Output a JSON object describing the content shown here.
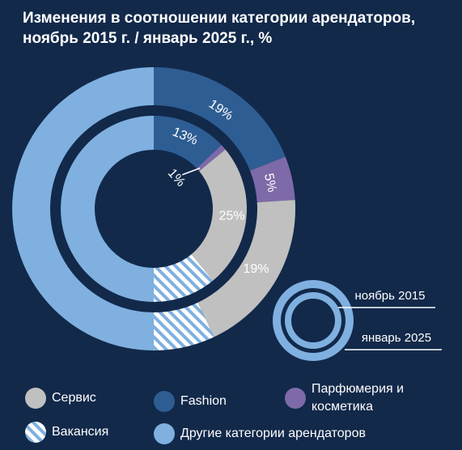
{
  "title": {
    "line1": "Изменения в соотношении категории арендаторов,",
    "line2": "ноябрь 2015 г. / январь 2025 г., %"
  },
  "colors": {
    "background": "#12294a",
    "Сервис": "#c0c0c0",
    "Fashion": "#2e5d93",
    "Парфюмерия и косметика": "#7e6aa8",
    "Вакансия": "#7fb0e0",
    "Другие категории арендаторов": "#7fb0e0"
  },
  "chart_data": {
    "type": "donut",
    "title": "Изменения в соотношении категории арендаторов, ноябрь 2015 г. / январь 2025 г., %",
    "unit": "%",
    "categories": [
      "Fashion",
      "Парфюмерия и косметика",
      "Сервис",
      "Вакансия",
      "Другие категории арендаторов"
    ],
    "series": [
      {
        "name": "январь 2025",
        "ring": "outer",
        "values": [
          19,
          5,
          19,
          7,
          50
        ],
        "labels": [
          "19%",
          "5%",
          "19%",
          "",
          ""
        ]
      },
      {
        "name": "ноябрь 2015",
        "ring": "inner",
        "values": [
          13,
          1,
          25,
          11,
          50
        ],
        "labels": [
          "13%",
          "1%",
          "25%",
          "",
          ""
        ]
      }
    ],
    "legend": {
      "position": "bottom",
      "items": [
        {
          "label": "Сервис",
          "key": "Сервис",
          "pattern": "solid"
        },
        {
          "label": "Fashion",
          "key": "Fashion",
          "pattern": "solid"
        },
        {
          "label": "Парфюмерия и косметика",
          "lines": [
            "Парфюмерия и",
            "косметика"
          ],
          "key": "Парфюмерия и косметика",
          "pattern": "solid"
        },
        {
          "label": "Вакансия",
          "key": "Вакансия",
          "pattern": "hatch"
        },
        {
          "label": "Другие категории арендаторов",
          "key": "Другие категории арендаторов",
          "pattern": "solid"
        }
      ]
    }
  }
}
